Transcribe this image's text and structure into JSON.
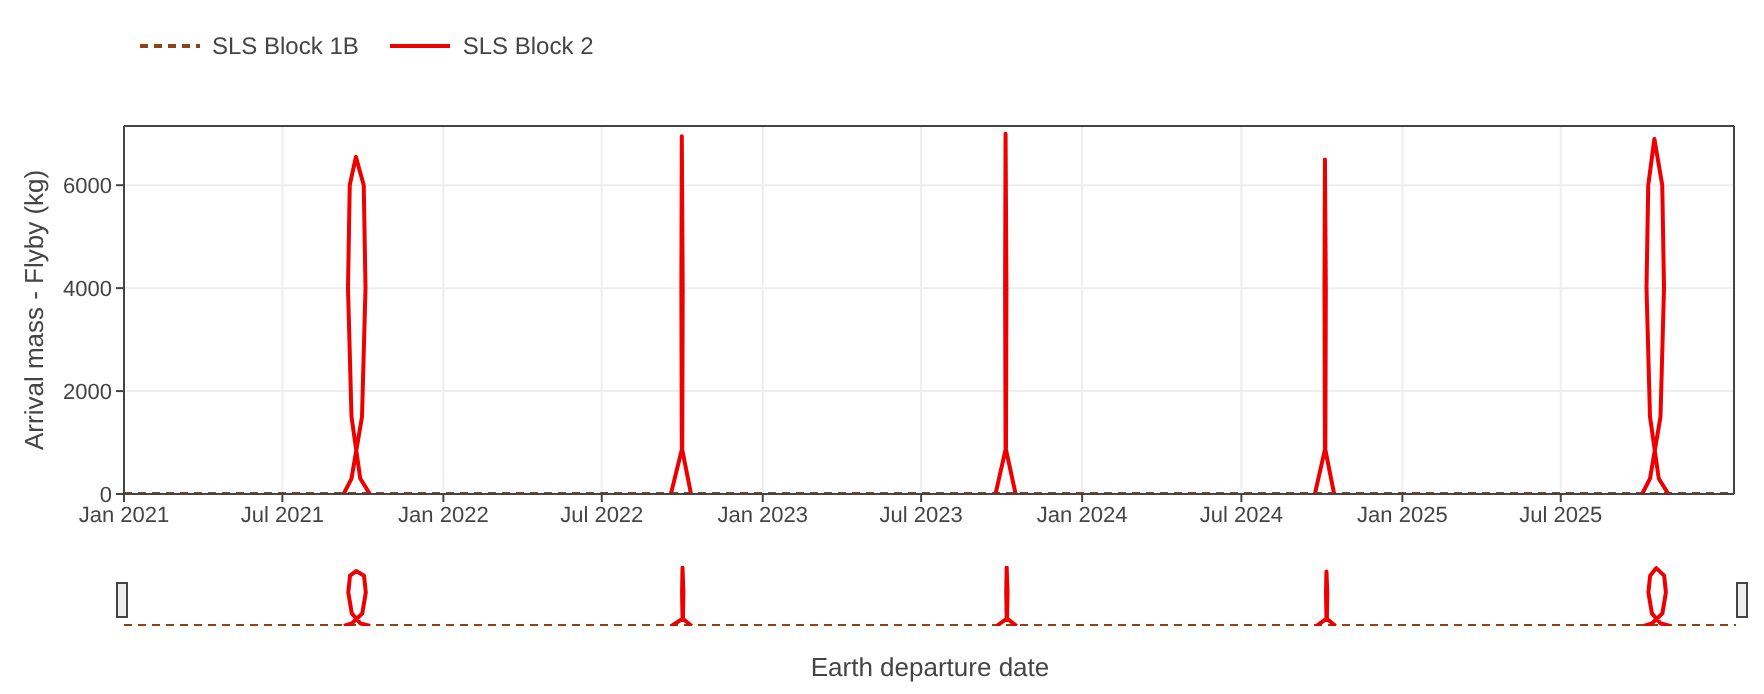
{
  "chart_data": {
    "type": "line",
    "xlabel": "Earth departure date",
    "ylabel": "Arrival mass - Flyby (kg)",
    "xlim": [
      "2021-01-01",
      "2026-01-15"
    ],
    "xticks": [
      {
        "value": "2021-01-01",
        "label": "Jan 2021"
      },
      {
        "value": "2021-07-01",
        "label": "Jul 2021"
      },
      {
        "value": "2022-01-01",
        "label": "Jan 2022"
      },
      {
        "value": "2022-07-01",
        "label": "Jul 2022"
      },
      {
        "value": "2023-01-01",
        "label": "Jan 2023"
      },
      {
        "value": "2023-07-01",
        "label": "Jul 2023"
      },
      {
        "value": "2024-01-01",
        "label": "Jan 2024"
      },
      {
        "value": "2024-07-01",
        "label": "Jul 2024"
      },
      {
        "value": "2025-01-01",
        "label": "Jan 2025"
      },
      {
        "value": "2025-07-01",
        "label": "Jul 2025"
      }
    ],
    "ylim": [
      0,
      7150
    ],
    "yticks": [
      0,
      2000,
      4000,
      6000
    ],
    "grid": true,
    "legend": "top left",
    "marker": "none",
    "series": [
      {
        "name": "SLS Block 1B",
        "color": "#8b4513",
        "line_style": "dashed",
        "x": [
          "2021-01-01",
          "2026-01-15"
        ],
        "values": [
          0,
          0
        ]
      },
      {
        "name": "SLS Block 2",
        "color": "#ee0000",
        "x": [
          "2021-09-09",
          "2021-09-18",
          "2021-09-30",
          "2021-10-04",
          "2021-10-02",
          "2021-09-23",
          "2021-09-16",
          "2021-09-14",
          "2021-09-18",
          "2021-09-28",
          "2021-10-09",
          "2022-03-01",
          "2022-09-18",
          "2022-10-01",
          "2022-10-01T12:00",
          "2022-09-30T12:00",
          "2022-09-30",
          "2022-09-30T12:00",
          "2022-10-11",
          "2023-03-01",
          "2023-09-24",
          "2023-10-06",
          "2023-10-06T12:00",
          "2023-10-05T12:00",
          "2023-10-05",
          "2023-10-05T12:00",
          "2023-10-17",
          "2024-03-01",
          "2024-09-23",
          "2024-10-05",
          "2024-10-05T12:00",
          "2024-10-04T12:00",
          "2024-10-04",
          "2024-10-04T12:00",
          "2024-10-15",
          "2025-03-01",
          "2025-10-02",
          "2025-10-11",
          "2025-10-23",
          "2025-10-27",
          "2025-10-25",
          "2025-10-16",
          "2025-10-09",
          "2025-10-07",
          "2025-10-11",
          "2025-10-21",
          "2025-11-01"
        ],
        "values": [
          0,
          300,
          1500,
          4000,
          6000,
          6550,
          6000,
          4000,
          1500,
          300,
          0,
          null,
          0,
          900,
          4000,
          6950,
          4000,
          900,
          0,
          null,
          0,
          900,
          4000,
          7000,
          4000,
          900,
          0,
          null,
          0,
          900,
          4000,
          6500,
          4000,
          900,
          0,
          null,
          0,
          300,
          1500,
          4000,
          6000,
          6900,
          6000,
          4000,
          1500,
          300,
          0
        ]
      }
    ]
  }
}
